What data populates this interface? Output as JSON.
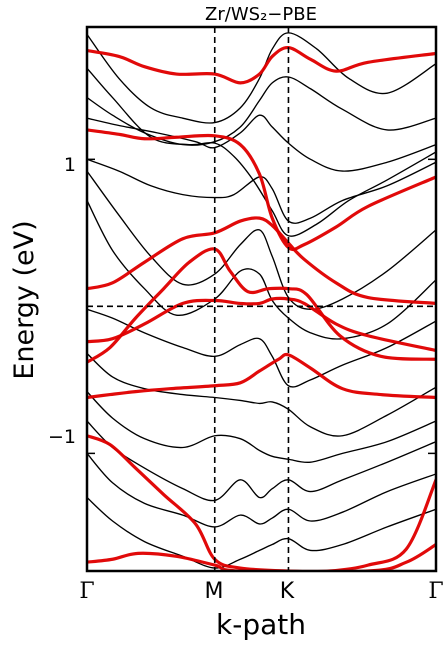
{
  "chart_data": {
    "type": "line",
    "title": "Zr/WS₂−PBE",
    "xlabel": "k-path",
    "ylabel": "Energy (eV)",
    "x_ticks": [
      "Γ",
      "M",
      "K",
      "Γ"
    ],
    "y_ticks": [
      "1",
      "−1"
    ],
    "ylim": [
      -1.8,
      1.9
    ],
    "x_positions": [
      0,
      1,
      1.577,
      2.732
    ],
    "reference_lines": {
      "vertical": [
        1,
        1.577
      ],
      "horizontal": [
        0
      ]
    },
    "highlight_color": "#e00000",
    "default_color": "#000000",
    "series": [
      {
        "type": "black",
        "values": [
          [
            0,
            1.85
          ],
          [
            0.25,
            1.55
          ],
          [
            0.5,
            1.35
          ],
          [
            0.75,
            1.28
          ],
          [
            1,
            1.25
          ],
          [
            1.2,
            1.35
          ],
          [
            1.35,
            1.55
          ],
          [
            1.45,
            1.75
          ],
          [
            1.577,
            1.86
          ],
          [
            1.8,
            1.75
          ],
          [
            2.05,
            1.55
          ],
          [
            2.35,
            1.45
          ],
          [
            2.732,
            1.65
          ]
        ]
      },
      {
        "type": "black",
        "values": [
          [
            0,
            1.62
          ],
          [
            0.2,
            1.42
          ],
          [
            0.5,
            1.15
          ],
          [
            0.8,
            1.1
          ],
          [
            1,
            1.11
          ],
          [
            1.15,
            1.02
          ],
          [
            1.3,
            0.86
          ],
          [
            1.45,
            0.65
          ],
          [
            1.577,
            0.48
          ],
          [
            1.8,
            0.56
          ],
          [
            2.05,
            0.72
          ],
          [
            2.35,
            0.86
          ],
          [
            2.732,
            1.05
          ]
        ]
      },
      {
        "type": "black",
        "values": [
          [
            0,
            1.28
          ],
          [
            0.25,
            1.23
          ],
          [
            0.55,
            1.18
          ],
          [
            0.85,
            1.12
          ],
          [
            1,
            1.08
          ],
          [
            1.2,
            1.18
          ],
          [
            1.35,
            1.3
          ],
          [
            1.45,
            1.22
          ],
          [
            1.577,
            1.11
          ],
          [
            1.75,
            1.0
          ],
          [
            2.0,
            0.92
          ],
          [
            2.35,
            0.98
          ],
          [
            2.732,
            1.1
          ]
        ]
      },
      {
        "type": "black",
        "values": [
          [
            0,
            1.0
          ],
          [
            0.25,
            0.92
          ],
          [
            0.5,
            0.82
          ],
          [
            0.75,
            0.76
          ],
          [
            1,
            0.74
          ],
          [
            1.15,
            0.76
          ],
          [
            1.35,
            0.88
          ],
          [
            1.45,
            0.8
          ],
          [
            1.577,
            0.58
          ],
          [
            1.75,
            0.6
          ],
          [
            2.0,
            0.72
          ],
          [
            2.35,
            0.82
          ],
          [
            2.732,
            0.98
          ]
        ]
      },
      {
        "type": "black",
        "values": [
          [
            0,
            0.92
          ],
          [
            0.25,
            0.62
          ],
          [
            0.5,
            0.34
          ],
          [
            0.75,
            0.15
          ],
          [
            1,
            0.22
          ],
          [
            1.2,
            0.42
          ],
          [
            1.35,
            0.52
          ],
          [
            1.45,
            0.34
          ],
          [
            1.577,
            0.06
          ],
          [
            1.75,
            -0.02
          ],
          [
            2.0,
            0.05
          ],
          [
            2.35,
            0.24
          ],
          [
            2.732,
            0.52
          ]
        ]
      },
      {
        "type": "black",
        "values": [
          [
            0,
            0.72
          ],
          [
            0.2,
            0.38
          ],
          [
            0.45,
            0.12
          ],
          [
            0.7,
            -0.06
          ],
          [
            1,
            0.05
          ],
          [
            1.2,
            0.24
          ],
          [
            1.35,
            0.22
          ],
          [
            1.45,
            0.04
          ],
          [
            1.577,
            -0.08
          ],
          [
            1.75,
            -0.18
          ],
          [
            2.0,
            -0.22
          ],
          [
            2.35,
            -0.12
          ],
          [
            2.732,
            0.18
          ]
        ]
      },
      {
        "type": "black",
        "values": [
          [
            0,
            -0.02
          ],
          [
            0.2,
            -0.08
          ],
          [
            0.45,
            -0.18
          ],
          [
            0.75,
            -0.28
          ],
          [
            1,
            -0.34
          ],
          [
            1.2,
            -0.26
          ],
          [
            1.35,
            -0.22
          ],
          [
            1.45,
            -0.34
          ],
          [
            1.577,
            -0.54
          ],
          [
            1.75,
            -0.5
          ],
          [
            2.0,
            -0.4
          ],
          [
            2.35,
            -0.28
          ],
          [
            2.732,
            -0.1
          ]
        ]
      },
      {
        "type": "black",
        "values": [
          [
            0,
            -0.32
          ],
          [
            0.2,
            -0.48
          ],
          [
            0.45,
            -0.56
          ],
          [
            0.75,
            -0.6
          ],
          [
            1,
            -0.62
          ],
          [
            1.2,
            -0.64
          ],
          [
            1.35,
            -0.66
          ],
          [
            1.45,
            -0.65
          ],
          [
            1.577,
            -0.7
          ],
          [
            1.75,
            -0.82
          ],
          [
            2.0,
            -0.88
          ],
          [
            2.35,
            -0.74
          ],
          [
            2.732,
            -0.55
          ]
        ]
      },
      {
        "type": "black",
        "values": [
          [
            0,
            -0.58
          ],
          [
            0.2,
            -0.76
          ],
          [
            0.45,
            -0.9
          ],
          [
            0.75,
            -0.96
          ],
          [
            1,
            -0.88
          ],
          [
            1.2,
            -0.9
          ],
          [
            1.35,
            -0.98
          ],
          [
            1.45,
            -1.02
          ],
          [
            1.577,
            -1.04
          ],
          [
            1.75,
            -1.06
          ],
          [
            2.0,
            -1.0
          ],
          [
            2.35,
            -0.92
          ],
          [
            2.732,
            -0.78
          ]
        ]
      },
      {
        "type": "black",
        "values": [
          [
            0,
            -0.78
          ],
          [
            0.2,
            -0.96
          ],
          [
            0.45,
            -1.1
          ],
          [
            0.75,
            -1.24
          ],
          [
            1,
            -1.32
          ],
          [
            1.2,
            -1.18
          ],
          [
            1.35,
            -1.3
          ],
          [
            1.45,
            -1.24
          ],
          [
            1.577,
            -1.18
          ],
          [
            1.75,
            -1.26
          ],
          [
            2.0,
            -1.18
          ],
          [
            2.35,
            -1.06
          ],
          [
            2.732,
            -0.92
          ]
        ]
      },
      {
        "type": "black",
        "values": [
          [
            0,
            -1.0
          ],
          [
            0.2,
            -1.2
          ],
          [
            0.45,
            -1.34
          ],
          [
            0.75,
            -1.42
          ],
          [
            1,
            -1.5
          ],
          [
            1.2,
            -1.42
          ],
          [
            1.35,
            -1.48
          ],
          [
            1.45,
            -1.44
          ],
          [
            1.577,
            -1.38
          ],
          [
            1.75,
            -1.46
          ],
          [
            2.0,
            -1.4
          ],
          [
            2.35,
            -1.26
          ],
          [
            2.732,
            -1.14
          ]
        ]
      },
      {
        "type": "black",
        "values": [
          [
            0,
            -1.3
          ],
          [
            0.2,
            -1.46
          ],
          [
            0.45,
            -1.6
          ],
          [
            0.75,
            -1.7
          ],
          [
            1,
            -1.78
          ],
          [
            1.2,
            -1.72
          ],
          [
            1.35,
            -1.66
          ],
          [
            1.45,
            -1.62
          ],
          [
            1.577,
            -1.58
          ],
          [
            1.75,
            -1.66
          ],
          [
            2.0,
            -1.62
          ],
          [
            2.35,
            -1.5
          ],
          [
            2.732,
            -1.38
          ]
        ]
      },
      {
        "type": "black",
        "values": [
          [
            0,
            1.42
          ],
          [
            0.2,
            1.3
          ],
          [
            0.45,
            1.18
          ],
          [
            0.75,
            1.1
          ],
          [
            1,
            1.12
          ],
          [
            1.2,
            1.22
          ],
          [
            1.35,
            1.4
          ],
          [
            1.45,
            1.52
          ],
          [
            1.577,
            1.56
          ],
          [
            1.75,
            1.48
          ],
          [
            2.0,
            1.34
          ],
          [
            2.35,
            1.2
          ],
          [
            2.732,
            1.28
          ]
        ]
      },
      {
        "type": "red",
        "values": [
          [
            0,
            1.74
          ],
          [
            0.25,
            1.7
          ],
          [
            0.45,
            1.63
          ],
          [
            0.7,
            1.58
          ],
          [
            1,
            1.58
          ],
          [
            1.2,
            1.52
          ],
          [
            1.35,
            1.58
          ],
          [
            1.45,
            1.7
          ],
          [
            1.577,
            1.76
          ],
          [
            1.75,
            1.68
          ],
          [
            1.95,
            1.6
          ],
          [
            2.2,
            1.66
          ],
          [
            2.732,
            1.72
          ]
        ]
      },
      {
        "type": "red",
        "values": [
          [
            0,
            1.2
          ],
          [
            0.25,
            1.17
          ],
          [
            0.45,
            1.14
          ],
          [
            0.7,
            1.15
          ],
          [
            1,
            1.16
          ],
          [
            1.2,
            1.1
          ],
          [
            1.35,
            0.9
          ],
          [
            1.45,
            0.6
          ],
          [
            1.577,
            0.4
          ],
          [
            1.7,
            0.42
          ],
          [
            1.95,
            0.54
          ],
          [
            2.2,
            0.68
          ],
          [
            2.732,
            0.88
          ]
        ]
      },
      {
        "type": "red",
        "values": [
          [
            0,
            0.12
          ],
          [
            0.2,
            0.16
          ],
          [
            0.45,
            0.3
          ],
          [
            0.75,
            0.46
          ],
          [
            1,
            0.5
          ],
          [
            1.2,
            0.58
          ],
          [
            1.35,
            0.6
          ],
          [
            1.45,
            0.55
          ],
          [
            1.577,
            0.43
          ],
          [
            1.7,
            0.32
          ],
          [
            1.95,
            0.16
          ],
          [
            2.2,
            0.06
          ],
          [
            2.732,
            0.02
          ]
        ]
      },
      {
        "type": "red",
        "values": [
          [
            0,
            -0.24
          ],
          [
            0.2,
            -0.22
          ],
          [
            0.45,
            -0.12
          ],
          [
            0.75,
            0.02
          ],
          [
            1,
            0.04
          ],
          [
            1.2,
            0.02
          ],
          [
            1.35,
            0.02
          ],
          [
            1.45,
            0.05
          ],
          [
            1.577,
            0.05
          ],
          [
            1.7,
            0.02
          ],
          [
            1.95,
            -0.12
          ],
          [
            2.2,
            -0.2
          ],
          [
            2.732,
            -0.3
          ]
        ]
      },
      {
        "type": "red",
        "values": [
          [
            0,
            -0.38
          ],
          [
            0.18,
            -0.28
          ],
          [
            0.38,
            -0.08
          ],
          [
            0.6,
            0.12
          ],
          [
            0.8,
            0.3
          ],
          [
            1,
            0.39
          ],
          [
            1.12,
            0.24
          ],
          [
            1.26,
            0.1
          ],
          [
            1.42,
            0.12
          ],
          [
            1.577,
            0.12
          ],
          [
            1.72,
            0.08
          ],
          [
            1.98,
            -0.2
          ],
          [
            2.3,
            -0.34
          ],
          [
            2.732,
            -0.36
          ]
        ]
      },
      {
        "type": "red",
        "values": [
          [
            0,
            -0.62
          ],
          [
            0.18,
            -0.6
          ],
          [
            0.38,
            -0.58
          ],
          [
            0.65,
            -0.56
          ],
          [
            1,
            -0.54
          ],
          [
            1.2,
            -0.52
          ],
          [
            1.35,
            -0.44
          ],
          [
            1.5,
            -0.36
          ],
          [
            1.577,
            -0.33
          ],
          [
            1.75,
            -0.42
          ],
          [
            2.0,
            -0.56
          ],
          [
            2.3,
            -0.6
          ],
          [
            2.732,
            -0.62
          ]
        ]
      },
      {
        "type": "red",
        "values": [
          [
            0,
            -0.88
          ],
          [
            0.18,
            -0.94
          ],
          [
            0.38,
            -1.1
          ],
          [
            0.6,
            -1.28
          ],
          [
            0.85,
            -1.48
          ],
          [
            1,
            -1.72
          ],
          [
            1.2,
            -1.78
          ],
          [
            1.577,
            -1.8
          ],
          [
            1.9,
            -1.8
          ],
          [
            2.2,
            -1.76
          ],
          [
            2.5,
            -1.65
          ],
          [
            2.732,
            -1.18
          ]
        ]
      },
      {
        "type": "red",
        "values": [
          [
            0,
            -1.74
          ],
          [
            0.2,
            -1.72
          ],
          [
            0.4,
            -1.68
          ],
          [
            0.7,
            -1.7
          ],
          [
            1,
            -1.76
          ],
          [
            1.2,
            -1.8
          ],
          [
            2.2,
            -1.8
          ],
          [
            2.5,
            -1.74
          ],
          [
            2.732,
            -1.62
          ]
        ]
      }
    ]
  }
}
